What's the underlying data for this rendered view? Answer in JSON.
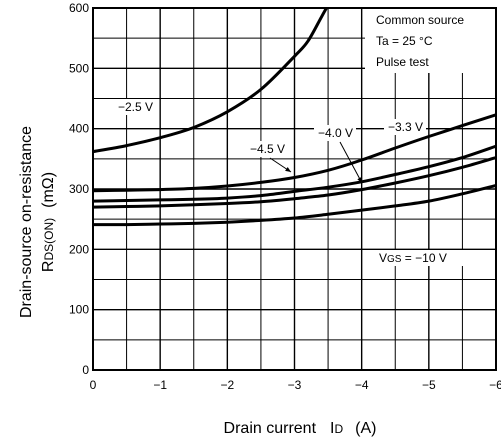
{
  "chart_data": {
    "type": "line",
    "xlabel": {
      "main": "Drain current",
      "symbol": "I",
      "symbol_sub": "D",
      "unit": "(A)"
    },
    "ylabel": {
      "line1": "Drain-source on-resistance",
      "symbol": "R",
      "symbol_sub": "DS(ON)",
      "unit": "(mΩ)"
    },
    "xlim": [
      0,
      -6
    ],
    "ylim": [
      0,
      600
    ],
    "x_ticks": [
      "0",
      "−1",
      "−2",
      "−3",
      "−4",
      "−5",
      "−6"
    ],
    "y_ticks": [
      "0",
      "100",
      "200",
      "300",
      "400",
      "500",
      "600"
    ],
    "grid": true,
    "conditions": {
      "line1": "Common source",
      "line2": "Ta = 25 °C",
      "line3": "Pulse test"
    },
    "series": [
      {
        "name": "−2.5 V",
        "points": [
          [
            0,
            362
          ],
          [
            -0.5,
            372
          ],
          [
            -1,
            385
          ],
          [
            -1.5,
            402
          ],
          [
            -2,
            428
          ],
          [
            -2.5,
            465
          ],
          [
            -3,
            520
          ],
          [
            -3.2,
            545
          ],
          [
            -3.4,
            585
          ],
          [
            -3.5,
            605
          ]
        ]
      },
      {
        "name": "−3.3 V",
        "points": [
          [
            0,
            297
          ],
          [
            -0.5,
            298
          ],
          [
            -1,
            299
          ],
          [
            -1.5,
            301
          ],
          [
            -2,
            305
          ],
          [
            -2.5,
            311
          ],
          [
            -3,
            319
          ],
          [
            -3.5,
            331
          ],
          [
            -4,
            348
          ],
          [
            -4.5,
            368
          ],
          [
            -5,
            387
          ],
          [
            -5.5,
            405
          ],
          [
            -6,
            423
          ]
        ]
      },
      {
        "name": "−4.0 V",
        "points": [
          [
            0,
            280
          ],
          [
            -0.5,
            281
          ],
          [
            -1,
            282
          ],
          [
            -1.5,
            283
          ],
          [
            -2,
            285
          ],
          [
            -2.5,
            289
          ],
          [
            -3,
            296
          ],
          [
            -3.5,
            303
          ],
          [
            -4,
            312
          ],
          [
            -4.5,
            324
          ],
          [
            -5,
            337
          ],
          [
            -5.5,
            352
          ],
          [
            -6,
            371
          ]
        ]
      },
      {
        "name": "−4.5 V",
        "points": [
          [
            0,
            270
          ],
          [
            -0.5,
            271
          ],
          [
            -1,
            272
          ],
          [
            -1.5,
            274
          ],
          [
            -2,
            276
          ],
          [
            -2.5,
            279
          ],
          [
            -3,
            284
          ],
          [
            -3.5,
            290
          ],
          [
            -4,
            299
          ],
          [
            -4.5,
            310
          ],
          [
            -5,
            322
          ],
          [
            -5.5,
            336
          ],
          [
            -6,
            352
          ]
        ]
      },
      {
        "name": "VGS = −10 V",
        "points": [
          [
            0,
            241
          ],
          [
            -0.5,
            241
          ],
          [
            -1,
            242
          ],
          [
            -1.5,
            243
          ],
          [
            -2,
            245
          ],
          [
            -2.5,
            248
          ],
          [
            -3,
            252
          ],
          [
            -3.5,
            258
          ],
          [
            -4,
            265
          ],
          [
            -4.5,
            272
          ],
          [
            -5,
            280
          ],
          [
            -5.5,
            292
          ],
          [
            -6,
            306
          ]
        ]
      }
    ],
    "series_labels": {
      "v25": "−2.5 V",
      "v33": "−3.3 V",
      "v40": "−4.0 V",
      "v45": "−4.5 V",
      "v10_prefix": "V",
      "v10_sub": "GS",
      "v10_suffix": " = −10 V"
    }
  }
}
